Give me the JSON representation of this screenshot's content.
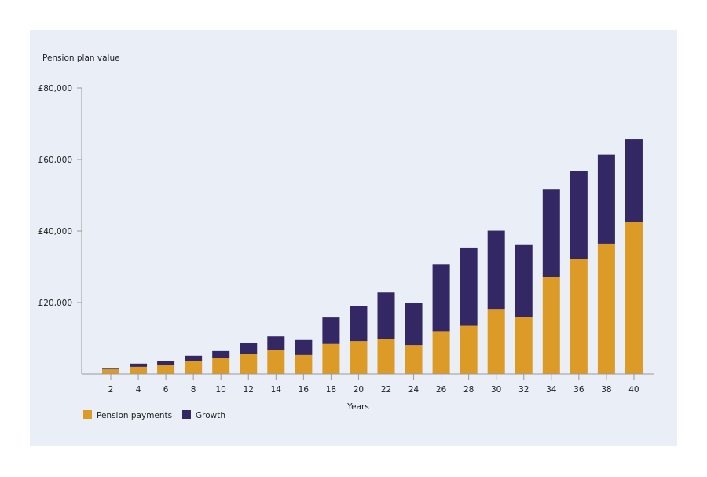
{
  "chart_data": {
    "type": "bar",
    "stacked": true,
    "title": "Pension plan value",
    "xlabel": "Years",
    "ylabel": "",
    "ylim": [
      0,
      80000
    ],
    "yticks": [
      20000,
      40000,
      60000,
      80000
    ],
    "ytick_labels": [
      "£20,000",
      "£40,000",
      "£60,000",
      "£80,000"
    ],
    "categories": [
      "2",
      "4",
      "6",
      "8",
      "10",
      "12",
      "14",
      "16",
      "18",
      "20",
      "22",
      "24",
      "26",
      "28",
      "30",
      "32",
      "34",
      "36",
      "38",
      "40"
    ],
    "series": [
      {
        "name": "Pension payments",
        "color": "#dc9a26",
        "values": [
          1300,
          2000,
          2600,
          3700,
          4400,
          5700,
          6600,
          5300,
          8400,
          9200,
          9700,
          8100,
          12000,
          13500,
          18200,
          16000,
          27200,
          32200,
          36500,
          42500
        ]
      },
      {
        "name": "Growth",
        "color": "#332864",
        "values": [
          400,
          900,
          1100,
          1400,
          2000,
          2900,
          3900,
          4200,
          7400,
          9700,
          13100,
          11900,
          18700,
          21900,
          21900,
          20100,
          24400,
          24600,
          24900,
          23200
        ]
      }
    ],
    "grid": false,
    "legend": "bottom-left"
  }
}
